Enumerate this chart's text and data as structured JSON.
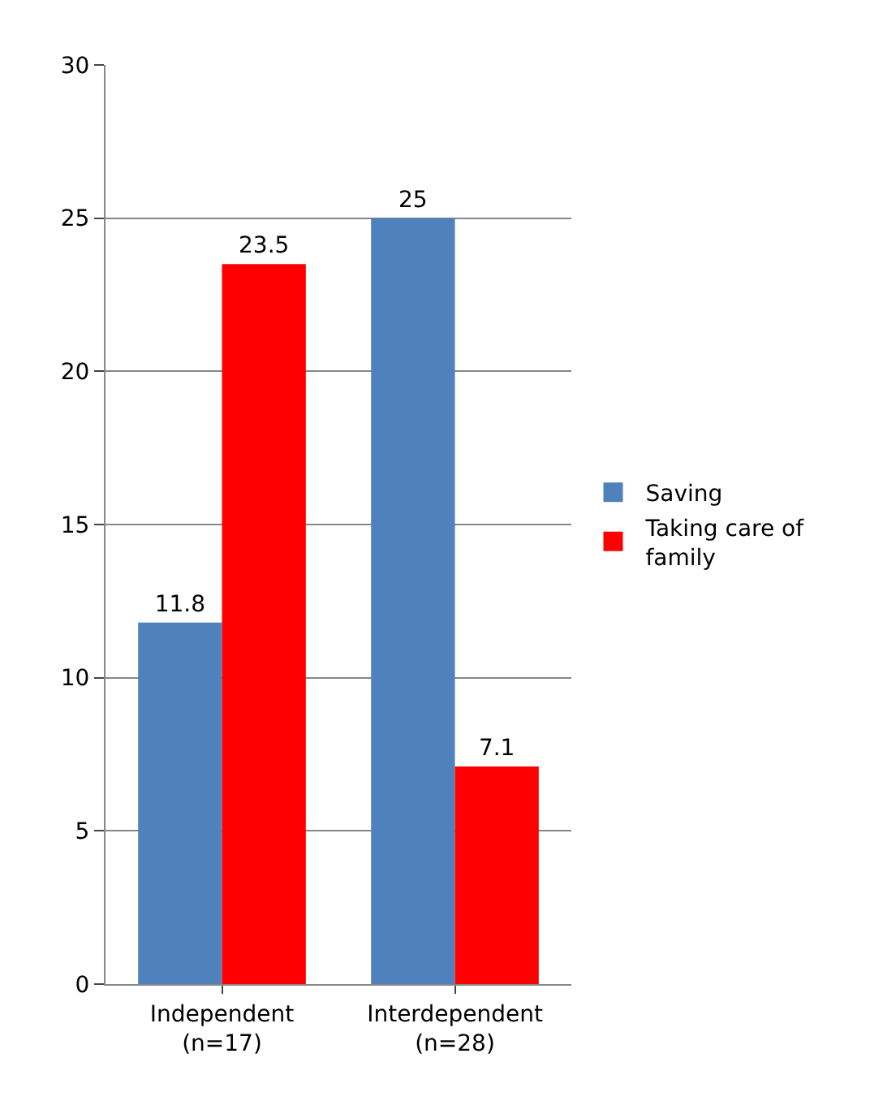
{
  "chart_data": {
    "type": "bar",
    "categories": [
      "Independent\n(n=17)",
      "Interdependent\n(n=28)"
    ],
    "series": [
      {
        "name": "Saving",
        "color": "#4f81bd",
        "values": [
          11.8,
          25
        ]
      },
      {
        "name": "Taking care of family",
        "color": "#ff0000",
        "values": [
          23.5,
          7.1
        ]
      }
    ],
    "ylim": [
      0,
      30
    ],
    "yticks": [
      0,
      5,
      10,
      15,
      20,
      25,
      30
    ],
    "grid": "y",
    "legend": "right",
    "data_labels": true
  }
}
